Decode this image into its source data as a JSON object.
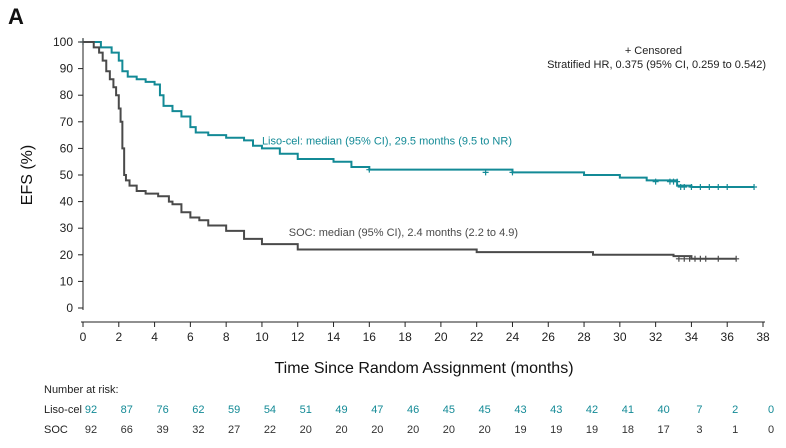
{
  "panel_label": "A",
  "colors": {
    "liso": "#138a96",
    "soc": "#4a4a4a",
    "axis": "#222222"
  },
  "legend": {
    "censored": "+ Censored",
    "hr": "Stratified HR, 0.375 (95% CI, 0.259 to 0.542)"
  },
  "risk_table": {
    "title": "Number at risk:",
    "rows": [
      {
        "name": "Liso-cel",
        "values": [
          92,
          87,
          76,
          62,
          59,
          54,
          51,
          49,
          47,
          46,
          45,
          45,
          43,
          43,
          42,
          41,
          40,
          7,
          2,
          0
        ]
      },
      {
        "name": "SOC",
        "values": [
          92,
          66,
          39,
          32,
          27,
          22,
          20,
          20,
          20,
          20,
          20,
          20,
          19,
          19,
          19,
          18,
          17,
          3,
          1,
          0
        ]
      }
    ]
  },
  "chart_data": {
    "type": "line",
    "ylabel": "EFS (%)",
    "xlabel": "Time Since Random Assignment (months)",
    "xlim": [
      0,
      38
    ],
    "ylim": [
      0,
      100
    ],
    "xticks": [
      0,
      2,
      4,
      6,
      8,
      10,
      12,
      14,
      16,
      18,
      20,
      22,
      24,
      26,
      28,
      30,
      32,
      34,
      36,
      38
    ],
    "yticks": [
      0,
      10,
      20,
      30,
      40,
      50,
      60,
      70,
      80,
      90,
      100
    ],
    "series": [
      {
        "name": "Liso-cel",
        "label": "Liso-cel: median (95% CI), 29.5 months (9.5 to NR)",
        "label_at": [
          10,
          63
        ],
        "x": [
          0,
          1,
          1.6,
          2,
          2.2,
          2.5,
          3,
          3.5,
          4,
          4.3,
          4.5,
          5,
          5.5,
          6,
          6.3,
          7,
          8,
          9,
          9.5,
          10,
          11,
          12,
          14,
          15,
          16,
          18,
          24,
          28,
          30,
          31.5,
          33.2,
          34,
          37.5
        ],
        "y": [
          100,
          98,
          96,
          93,
          89,
          87,
          86,
          85,
          84,
          80,
          76,
          74,
          72,
          68,
          66,
          65,
          64,
          63,
          61,
          60,
          58,
          56,
          55,
          53,
          52,
          52,
          51,
          50,
          49,
          48,
          46,
          45.5,
          45.5
        ],
        "censored": [
          [
            0,
            100
          ],
          [
            16,
            52
          ],
          [
            22.5,
            51
          ],
          [
            24,
            51
          ],
          [
            32,
            47.5
          ],
          [
            32.8,
            47.5
          ],
          [
            33,
            47.5
          ],
          [
            33.2,
            47.5
          ],
          [
            33.4,
            45.5
          ],
          [
            33.6,
            45.5
          ],
          [
            34,
            45.5
          ],
          [
            34.5,
            45.5
          ],
          [
            35,
            45.5
          ],
          [
            35.5,
            45.5
          ],
          [
            36,
            45.5
          ],
          [
            37.5,
            45.5
          ]
        ]
      },
      {
        "name": "SOC",
        "label": "SOC: median (95% CI), 2.4 months (2.2 to 4.9)",
        "label_at": [
          11.5,
          28.5
        ],
        "x": [
          0,
          0.6,
          0.9,
          1.1,
          1.3,
          1.5,
          1.7,
          1.85,
          2,
          2.1,
          2.2,
          2.3,
          2.4,
          2.6,
          3,
          3.5,
          4.2,
          4.8,
          5,
          5.5,
          6,
          6.5,
          7,
          8,
          9,
          10,
          12,
          22,
          28.5,
          33,
          34,
          36.5
        ],
        "y": [
          100,
          98,
          96,
          93,
          89,
          86,
          83,
          80,
          75,
          70,
          60,
          50,
          48,
          46,
          44,
          43,
          42,
          40,
          39,
          36,
          34,
          33,
          31,
          29,
          26,
          24,
          22,
          21,
          20,
          19.5,
          18.5,
          18.5
        ],
        "censored": [
          [
            0,
            100
          ],
          [
            33.3,
            18.5
          ],
          [
            33.6,
            18.5
          ],
          [
            33.9,
            18.5
          ],
          [
            34.2,
            18.5
          ],
          [
            34.5,
            18.5
          ],
          [
            34.8,
            18.5
          ],
          [
            35.5,
            18.5
          ],
          [
            36.5,
            18.5
          ]
        ]
      }
    ]
  }
}
